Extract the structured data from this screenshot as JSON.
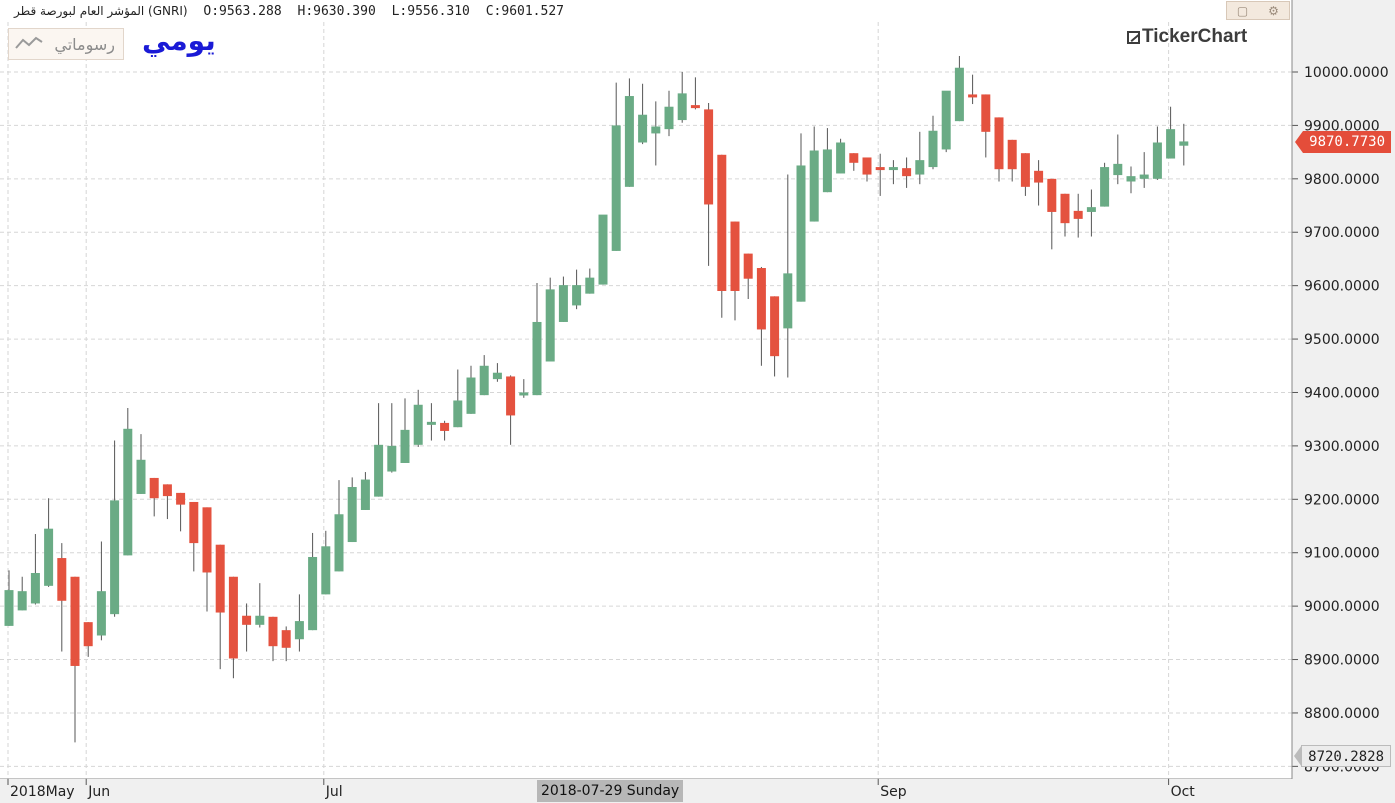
{
  "header": {
    "instrument": "المؤشر العام لبورصة قطر (GNRI)",
    "open": "O:9563.288",
    "high": "H:9630.390",
    "low": "L:9556.310",
    "close": "C:9601.527"
  },
  "toolbar": {
    "drawings_label": "رسوماتي",
    "period_label": "يومي",
    "brand": "TickerChart",
    "window_buttons": [
      "restore-icon",
      "settings-icon"
    ]
  },
  "price_labels": {
    "last": "9870.7730",
    "low": "8720.2828"
  },
  "time_cursor": "2018-07-29 Sunday",
  "colors": {
    "up": "#6aab85",
    "down": "#e4523f",
    "grid": "#d6d6d6",
    "text": "#222222"
  },
  "chart_data": {
    "type": "candlestick",
    "ylim": [
      8700,
      10100
    ],
    "yticks": [
      8700,
      8800,
      8900,
      9000,
      9100,
      9200,
      9300,
      9400,
      9500,
      9600,
      9700,
      9800,
      9900,
      10000
    ],
    "ytick_labels": [
      "8700.0000",
      "8800.0000",
      "8900.0000",
      "9000.0000",
      "9100.0000",
      "9200.0000",
      "9300.0000",
      "9400.0000",
      "9500.0000",
      "9600.0000",
      "9700.0000",
      "9800.0000",
      "9900.0000",
      "10000.0000"
    ],
    "x_labels": [
      {
        "label": "2018May",
        "index": 0
      },
      {
        "label": "Jun",
        "index": 6
      },
      {
        "label": "Jul",
        "index": 24
      },
      {
        "label": "Sep",
        "index": 66
      },
      {
        "label": "Oct",
        "index": 88
      }
    ],
    "candles": [
      {
        "o": 8963,
        "h": 9067,
        "l": 8963,
        "c": 9030
      },
      {
        "o": 8992,
        "h": 9055,
        "l": 8992,
        "c": 9028
      },
      {
        "o": 9005,
        "h": 9135,
        "l": 9003,
        "c": 9062
      },
      {
        "o": 9038,
        "h": 9202,
        "l": 9036,
        "c": 9145
      },
      {
        "o": 9090,
        "h": 9118,
        "l": 8915,
        "c": 9010
      },
      {
        "o": 9055,
        "h": 9055,
        "l": 8745,
        "c": 8888
      },
      {
        "o": 8970,
        "h": 8970,
        "l": 8905,
        "c": 8925
      },
      {
        "o": 8945,
        "h": 9121,
        "l": 8936,
        "c": 9028
      },
      {
        "o": 8985,
        "h": 9310,
        "l": 8980,
        "c": 9198
      },
      {
        "o": 9095,
        "h": 9371,
        "l": 9095,
        "c": 9332
      },
      {
        "o": 9210,
        "h": 9322,
        "l": 9210,
        "c": 9274
      },
      {
        "o": 9240,
        "h": 9240,
        "l": 9168,
        "c": 9202
      },
      {
        "o": 9228,
        "h": 9228,
        "l": 9163,
        "c": 9206
      },
      {
        "o": 9212,
        "h": 9212,
        "l": 9140,
        "c": 9190
      },
      {
        "o": 9195,
        "h": 9195,
        "l": 9065,
        "c": 9118
      },
      {
        "o": 9185,
        "h": 9185,
        "l": 8990,
        "c": 9063
      },
      {
        "o": 9115,
        "h": 9115,
        "l": 8882,
        "c": 8988
      },
      {
        "o": 9055,
        "h": 9055,
        "l": 8865,
        "c": 8902
      },
      {
        "o": 8982,
        "h": 9005,
        "l": 8915,
        "c": 8965
      },
      {
        "o": 8965,
        "h": 9043,
        "l": 8960,
        "c": 8982
      },
      {
        "o": 8980,
        "h": 8980,
        "l": 8897,
        "c": 8925
      },
      {
        "o": 8955,
        "h": 8962,
        "l": 8897,
        "c": 8922
      },
      {
        "o": 8938,
        "h": 9022,
        "l": 8915,
        "c": 8972
      },
      {
        "o": 8955,
        "h": 9137,
        "l": 8955,
        "c": 9092
      },
      {
        "o": 9022,
        "h": 9141,
        "l": 9022,
        "c": 9112
      },
      {
        "o": 9065,
        "h": 9236,
        "l": 9065,
        "c": 9172
      },
      {
        "o": 9120,
        "h": 9241,
        "l": 9120,
        "c": 9223
      },
      {
        "o": 9180,
        "h": 9251,
        "l": 9180,
        "c": 9237
      },
      {
        "o": 9205,
        "h": 9380,
        "l": 9205,
        "c": 9302
      },
      {
        "o": 9252,
        "h": 9380,
        "l": 9250,
        "c": 9300
      },
      {
        "o": 9268,
        "h": 9389,
        "l": 9268,
        "c": 9330
      },
      {
        "o": 9302,
        "h": 9405,
        "l": 9298,
        "c": 9377
      },
      {
        "o": 9343,
        "h": 9380,
        "l": 9310,
        "c": 9345
      },
      {
        "o": 9343,
        "h": 9347,
        "l": 9310,
        "c": 9328
      },
      {
        "o": 9335,
        "h": 9443,
        "l": 9335,
        "c": 9385
      },
      {
        "o": 9360,
        "h": 9450,
        "l": 9360,
        "c": 9428
      },
      {
        "o": 9395,
        "h": 9470,
        "l": 9395,
        "c": 9450
      },
      {
        "o": 9425,
        "h": 9455,
        "l": 9420,
        "c": 9437
      },
      {
        "o": 9430,
        "h": 9432,
        "l": 9302,
        "c": 9357
      },
      {
        "o": 9395,
        "h": 9425,
        "l": 9390,
        "c": 9400
      },
      {
        "o": 9395,
        "h": 9605,
        "l": 9395,
        "c": 9532
      },
      {
        "o": 9458,
        "h": 9615,
        "l": 9458,
        "c": 9593
      },
      {
        "o": 9532,
        "h": 9617,
        "l": 9532,
        "c": 9601
      },
      {
        "o": 9563,
        "h": 9630,
        "l": 9556,
        "c": 9601
      },
      {
        "o": 9585,
        "h": 9632,
        "l": 9585,
        "c": 9615
      },
      {
        "o": 9602,
        "h": 9720,
        "l": 9602,
        "c": 9733
      },
      {
        "o": 9665,
        "h": 9980,
        "l": 9665,
        "c": 9900
      },
      {
        "o": 9785,
        "h": 9988,
        "l": 9785,
        "c": 9955
      },
      {
        "o": 9868,
        "h": 9978,
        "l": 9865,
        "c": 9920
      },
      {
        "o": 9885,
        "h": 9945,
        "l": 9825,
        "c": 9898
      },
      {
        "o": 9893,
        "h": 9965,
        "l": 9880,
        "c": 9935
      },
      {
        "o": 9910,
        "h": 10000,
        "l": 9905,
        "c": 9960
      },
      {
        "o": 9938,
        "h": 9990,
        "l": 9930,
        "c": 9935
      },
      {
        "o": 9930,
        "h": 9942,
        "l": 9637,
        "c": 9752
      },
      {
        "o": 9845,
        "h": 9845,
        "l": 9540,
        "c": 9590
      },
      {
        "o": 9720,
        "h": 9720,
        "l": 9535,
        "c": 9590
      },
      {
        "o": 9660,
        "h": 9660,
        "l": 9575,
        "c": 9613
      },
      {
        "o": 9633,
        "h": 9635,
        "l": 9450,
        "c": 9518
      },
      {
        "o": 9580,
        "h": 9580,
        "l": 9430,
        "c": 9468
      },
      {
        "o": 9520,
        "h": 9808,
        "l": 9428,
        "c": 9623
      },
      {
        "o": 9570,
        "h": 9885,
        "l": 9570,
        "c": 9825
      },
      {
        "o": 9720,
        "h": 9898,
        "l": 9720,
        "c": 9853
      },
      {
        "o": 9775,
        "h": 9895,
        "l": 9775,
        "c": 9855
      },
      {
        "o": 9810,
        "h": 9875,
        "l": 9810,
        "c": 9868
      },
      {
        "o": 9848,
        "h": 9848,
        "l": 9815,
        "c": 9830
      },
      {
        "o": 9840,
        "h": 9840,
        "l": 9795,
        "c": 9808
      },
      {
        "o": 9822,
        "h": 9847,
        "l": 9768,
        "c": 9818
      },
      {
        "o": 9820,
        "h": 9835,
        "l": 9790,
        "c": 9822
      },
      {
        "o": 9820,
        "h": 9840,
        "l": 9783,
        "c": 9805
      },
      {
        "o": 9808,
        "h": 9888,
        "l": 9790,
        "c": 9835
      },
      {
        "o": 9822,
        "h": 9918,
        "l": 9818,
        "c": 9890
      },
      {
        "o": 9855,
        "h": 9960,
        "l": 9850,
        "c": 9965
      },
      {
        "o": 9908,
        "h": 10030,
        "l": 9908,
        "c": 10008
      },
      {
        "o": 9958,
        "h": 9995,
        "l": 9940,
        "c": 9955
      },
      {
        "o": 9958,
        "h": 9958,
        "l": 9840,
        "c": 9888
      },
      {
        "o": 9915,
        "h": 9915,
        "l": 9795,
        "c": 9818
      },
      {
        "o": 9873,
        "h": 9873,
        "l": 9795,
        "c": 9818
      },
      {
        "o": 9848,
        "h": 9848,
        "l": 9768,
        "c": 9785
      },
      {
        "o": 9815,
        "h": 9835,
        "l": 9750,
        "c": 9793
      },
      {
        "o": 9800,
        "h": 9800,
        "l": 9668,
        "c": 9738
      },
      {
        "o": 9772,
        "h": 9772,
        "l": 9692,
        "c": 9717
      },
      {
        "o": 9740,
        "h": 9772,
        "l": 9690,
        "c": 9725
      },
      {
        "o": 9738,
        "h": 9780,
        "l": 9692,
        "c": 9747
      },
      {
        "o": 9748,
        "h": 9830,
        "l": 9748,
        "c": 9822
      },
      {
        "o": 9807,
        "h": 9883,
        "l": 9790,
        "c": 9828
      },
      {
        "o": 9795,
        "h": 9823,
        "l": 9773,
        "c": 9805
      },
      {
        "o": 9800,
        "h": 9850,
        "l": 9783,
        "c": 9808
      },
      {
        "o": 9800,
        "h": 9898,
        "l": 9798,
        "c": 9868
      },
      {
        "o": 9838,
        "h": 9935,
        "l": 9838,
        "c": 9893
      },
      {
        "o": 9862,
        "h": 9903,
        "l": 9825,
        "c": 9870
      }
    ]
  }
}
